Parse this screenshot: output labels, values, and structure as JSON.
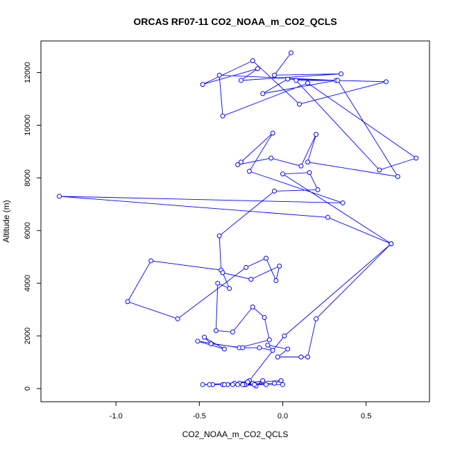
{
  "chart_data": {
    "type": "line",
    "title": "ORCAS RF07-11 CO2_NOAA_m_CO2_QCLS",
    "xlabel": "CO2_NOAA_m_CO2_QCLS",
    "ylabel": "Altitude (m)",
    "xlim": [
      -1.45,
      0.88
    ],
    "ylim": [
      -500,
      13200
    ],
    "x_ticks": [
      -1.0,
      -0.5,
      0.0,
      0.5
    ],
    "x_tick_labels": [
      "-1.0",
      "-0.5",
      "0.0",
      "0.5"
    ],
    "y_ticks": [
      0,
      2000,
      4000,
      6000,
      8000,
      10000,
      12000
    ],
    "y_tick_labels": [
      "0",
      "2000",
      "4000",
      "6000",
      "8000",
      "10000",
      "12000"
    ],
    "grid": false,
    "series_color": "#0000ff",
    "series": [
      {
        "markers": "open-circle",
        "x": [
          0.05,
          -0.05,
          0.35,
          -0.25,
          -0.15,
          -0.48,
          -0.18,
          0.1,
          0.62,
          0.03,
          -0.12,
          0.32,
          -0.38,
          -0.36,
          0.15,
          0.8,
          0.58,
          0.08,
          0.33,
          0.69,
          0.15,
          0.2,
          0.11,
          -0.07,
          -0.27,
          -0.25,
          -0.06,
          -0.2,
          0.36,
          -1.34,
          0.27,
          0.65,
          0.0,
          0.16,
          0.21,
          -0.05,
          -0.38,
          -0.37,
          -0.79,
          -0.93,
          -0.63,
          -0.22,
          -0.1,
          -0.04,
          -0.02,
          -0.19,
          -0.36,
          -0.32,
          -0.39,
          -0.4,
          -0.3,
          -0.18,
          -0.11,
          -0.08,
          -0.26,
          -0.51,
          -0.35,
          -0.47,
          -0.43,
          -0.24,
          -0.14,
          -0.06,
          -0.09,
          0.03,
          -0.03,
          0.11,
          0.15,
          0.2,
          0.65,
          0.01,
          -0.2,
          -0.29,
          -0.16,
          -0.12,
          -0.22,
          -0.18,
          -0.33,
          -0.3,
          -0.17,
          -0.21,
          -0.26,
          -0.1,
          -0.42,
          -0.36,
          -0.05,
          -0.01,
          -0.48,
          -0.23,
          -0.27,
          -0.24,
          -0.35,
          -0.44,
          0.0
        ],
        "y": [
          12750,
          11900,
          11950,
          11700,
          12150,
          11550,
          12450,
          10800,
          11650,
          11750,
          11200,
          11700,
          11900,
          10350,
          11600,
          8750,
          8300,
          11700,
          11700,
          8050,
          8600,
          9650,
          8450,
          8750,
          8500,
          8600,
          9700,
          8250,
          7050,
          7300,
          6500,
          5500,
          8150,
          8200,
          7550,
          7500,
          5800,
          4500,
          4850,
          3300,
          2650,
          4600,
          4950,
          4100,
          4650,
          4150,
          4400,
          3800,
          4000,
          2200,
          2150,
          3100,
          2700,
          1850,
          1550,
          1800,
          1500,
          1950,
          1700,
          1550,
          1550,
          1450,
          1650,
          1500,
          1200,
          1200,
          1200,
          2650,
          5500,
          2000,
          300,
          200,
          100,
          300,
          150,
          200,
          150,
          150,
          150,
          250,
          200,
          150,
          150,
          150,
          200,
          300,
          150,
          150,
          150,
          150,
          150,
          150,
          150
        ]
      }
    ]
  }
}
